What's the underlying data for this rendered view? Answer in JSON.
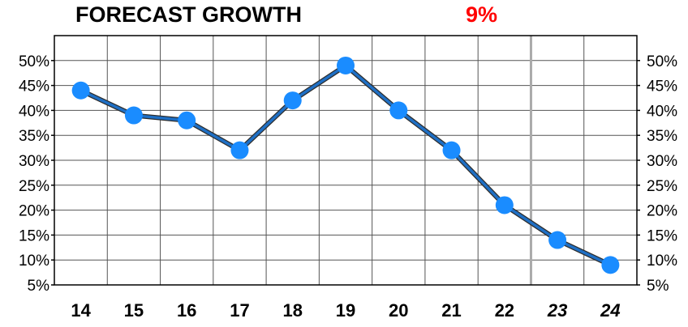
{
  "chart_data": {
    "type": "line",
    "title": "FORECAST GROWTH",
    "title_value": "9%",
    "title_value_color": "#ff0000",
    "categories": [
      "14",
      "15",
      "16",
      "17",
      "18",
      "19",
      "20",
      "21",
      "22",
      "23",
      "24"
    ],
    "forecast_categories": [
      "23",
      "24"
    ],
    "series": [
      {
        "values": [
          44,
          39,
          38,
          32,
          42,
          49,
          40,
          32,
          21,
          14,
          9
        ]
      }
    ],
    "ylim": [
      5,
      55
    ],
    "yticks": [
      "50%",
      "45%",
      "40%",
      "35%",
      "30%",
      "25%",
      "20%",
      "15%",
      "10%",
      "5%"
    ],
    "ytick_values": [
      50,
      45,
      40,
      35,
      30,
      25,
      20,
      15,
      10,
      5
    ],
    "grid": true,
    "line_color": "#1f6fc4",
    "marker_color": "#1a8cff",
    "forecast_divider_color": "#aaaaaa"
  }
}
